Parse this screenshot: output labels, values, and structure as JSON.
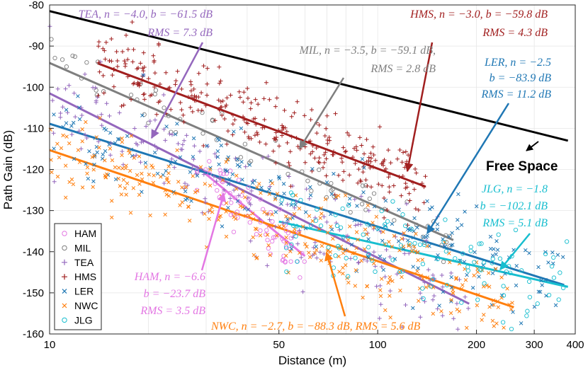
{
  "chart_data": {
    "type": "scatter",
    "title": "",
    "xlabel": "Distance (m)",
    "ylabel": "Path Gain (dB)",
    "xscale": "log",
    "xlim": [
      10,
      400
    ],
    "ylim": [
      -160,
      -80
    ],
    "grid": true,
    "x_ticks": [
      10,
      50,
      100,
      200,
      300,
      400
    ],
    "x_tick_labels": [
      "10",
      "50",
      "100",
      "200",
      "300",
      "400"
    ],
    "y_ticks": [
      -160,
      -150,
      -140,
      -130,
      -120,
      -110,
      -100,
      -90,
      -80
    ],
    "y_tick_labels": [
      "-160",
      "-150",
      "-140",
      "-130",
      "-120",
      "-110",
      "-100",
      "-90",
      "-80"
    ],
    "legend_position": "bottom-left",
    "series": [
      {
        "name": "HAM",
        "marker": "o",
        "color": "#e377e3",
        "n": -6.6,
        "b": -23.7,
        "rms": 3.5,
        "x_range": [
          28,
          60
        ],
        "fit_range": [
          28,
          60
        ]
      },
      {
        "name": "MIL",
        "marker": "o",
        "color": "#7f7f7f",
        "n": -3.5,
        "b": -59.1,
        "rms": 2.8,
        "x_range": [
          10,
          170
        ],
        "fit_range": [
          10,
          170
        ]
      },
      {
        "name": "TEA",
        "marker": "+",
        "color": "#9467bd",
        "n": -4.0,
        "b": -61.5,
        "rms": 7.3,
        "x_range": [
          10,
          190
        ],
        "fit_range": [
          10,
          190
        ]
      },
      {
        "name": "HMS",
        "marker": "+",
        "color": "#a11f1f",
        "n": -3.0,
        "b": -59.8,
        "rms": 4.3,
        "x_range": [
          14,
          140
        ],
        "fit_range": [
          14,
          140
        ]
      },
      {
        "name": "LER",
        "marker": "x",
        "color": "#1f77b4",
        "n": -2.5,
        "b": -83.9,
        "rms": 11.2,
        "x_range": [
          10,
          370
        ],
        "fit_range": [
          10,
          370
        ]
      },
      {
        "name": "NWC",
        "marker": "x",
        "color": "#ff7f0e",
        "n": -2.7,
        "b": -88.3,
        "rms": 5.6,
        "x_range": [
          10,
          260
        ],
        "fit_range": [
          10,
          260
        ]
      },
      {
        "name": "JLG",
        "marker": "o",
        "color": "#17becf",
        "n": -1.8,
        "b": -102.1,
        "rms": 5.1,
        "x_range": [
          50,
          380
        ],
        "fit_range": [
          50,
          380
        ]
      }
    ],
    "free_space": {
      "label": "Free Space",
      "y_at_10": -81.5,
      "y_at_380": -113
    }
  },
  "annotations": [
    {
      "id": "tea",
      "line1": "TEA, n = −4.0, b = −61.5 dB",
      "line2": "RMS = 7.3 dB",
      "color": "#9467bd"
    },
    {
      "id": "hms",
      "line1": "HMS, n = −3.0, b = −59.8 dB",
      "line2": "RMS = 4.3 dB",
      "color": "#a11f1f"
    },
    {
      "id": "mil",
      "line1": "MIL, n = −3.5, b = −59.1 dB,",
      "line2": "RMS = 2.8 dB",
      "color": "#7f7f7f"
    },
    {
      "id": "ler",
      "line1": "LER, n = −2.5",
      "line2": "b = −83.9 dB",
      "line3": "RMS = 11.2 dB",
      "color": "#1f77b4"
    },
    {
      "id": "jlg",
      "line1": "JLG, n = −1.8",
      "line2": "b = −102.1 dB",
      "line3": "RMS = 5.1 dB",
      "color": "#17becf"
    },
    {
      "id": "ham",
      "line1": "HAM, n = −6.6",
      "line2": "b = −23.7 dB",
      "line3": "RMS = 3.5 dB",
      "color": "#e377e3"
    },
    {
      "id": "nwc",
      "line1": "NWC, n = −2.7, b = −88.3 dB, RMS = 5.6 dB",
      "color": "#ff7f0e"
    }
  ]
}
